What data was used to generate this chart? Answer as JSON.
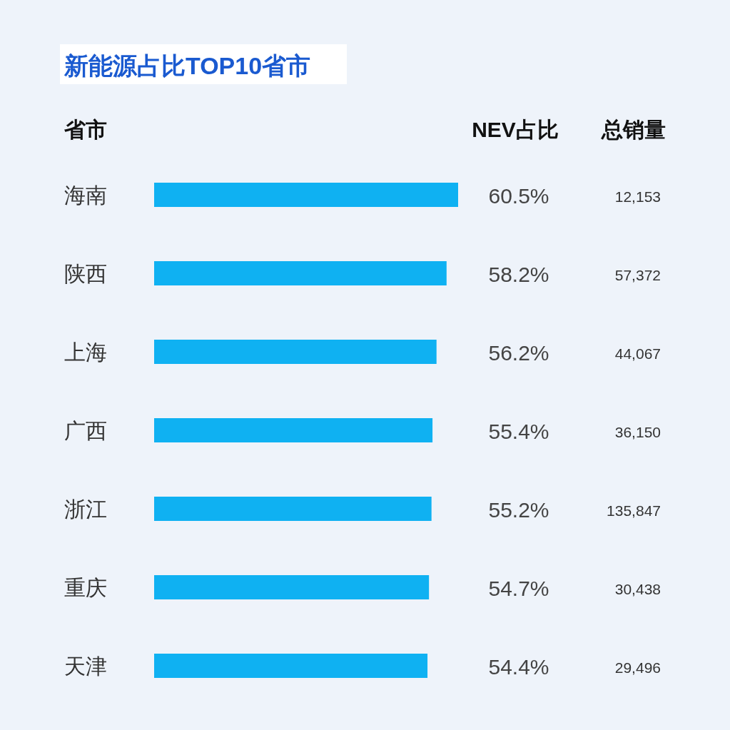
{
  "chart_data": {
    "type": "bar",
    "orientation": "horizontal",
    "title": "新能源占比TOP10省市",
    "ylabel": "省市",
    "xlabel": "NEV占比",
    "categories": [
      "海南",
      "陕西",
      "上海",
      "广西",
      "浙江",
      "重庆",
      "天津"
    ],
    "series": [
      {
        "color": "#0fb1f2",
        "values": [
          60.5,
          58.2,
          56.2,
          55.4,
          55.2,
          54.7,
          54.4
        ],
        "value_labels": [
          "60.5%",
          "58.2%",
          "56.2%",
          "55.4%",
          "55.2%",
          "54.7%",
          "54.4%"
        ]
      }
    ],
    "annotations": [
      "总销量",
      "12,153",
      "57,372",
      "44,067",
      "36,150",
      "135,847",
      "30,438",
      "29,496"
    ],
    "data_labels": true
  }
}
